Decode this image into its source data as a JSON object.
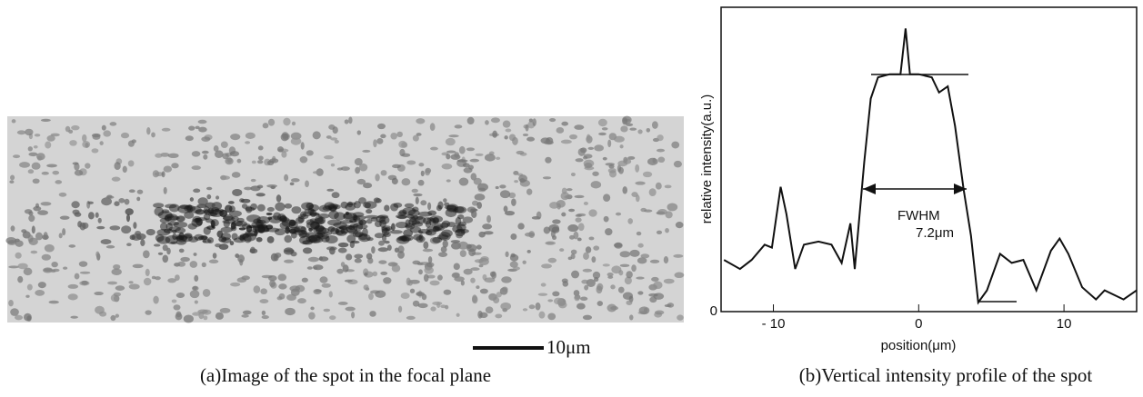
{
  "panel_a": {
    "scale_bar_label": "10μm",
    "caption": "(a)Image of the spot in the focal plane"
  },
  "chart_data": {
    "type": "line",
    "x": [
      -13.4,
      -12.3,
      -11.5,
      -10.6,
      -10.1,
      -9.5,
      -9.1,
      -8.5,
      -7.9,
      -6.9,
      -6.0,
      -5.3,
      -4.7,
      -4.4,
      -3.75,
      -3.3,
      -2.8,
      -2.0,
      -1.25,
      -0.9,
      -0.6,
      0,
      0.9,
      1.4,
      2.0,
      2.5,
      3.1,
      3.6,
      4.1,
      4.7,
      5.6,
      6.4,
      7.2,
      8.1,
      9.1,
      9.7,
      10.3,
      11.25,
      12.2,
      12.8,
      14.1,
      15
    ],
    "series": [
      {
        "color": "#111111",
        "values": [
          17,
          14,
          17,
          22,
          21,
          41,
          32,
          14,
          22,
          23,
          22,
          16,
          29,
          14,
          49,
          70,
          77,
          78,
          78,
          93,
          78,
          78,
          77,
          72,
          74,
          61,
          40,
          25,
          3,
          7,
          19,
          16,
          17,
          7,
          20,
          24,
          19,
          8,
          4,
          7,
          4,
          7
        ]
      }
    ],
    "xlim": [
      -13.6,
      15
    ],
    "xticks": [
      {
        "value": -10,
        "label": "- 10"
      },
      0,
      10
    ],
    "ylim": [
      0,
      100
    ],
    "yticks": [
      0
    ],
    "xlabel": "position(μm)",
    "ylabel": "relative intensity(a.u.)",
    "annotations": [
      "FWHM",
      "7.2μm"
    ],
    "caption": "(b)Vertical intensity profile of the spot"
  }
}
